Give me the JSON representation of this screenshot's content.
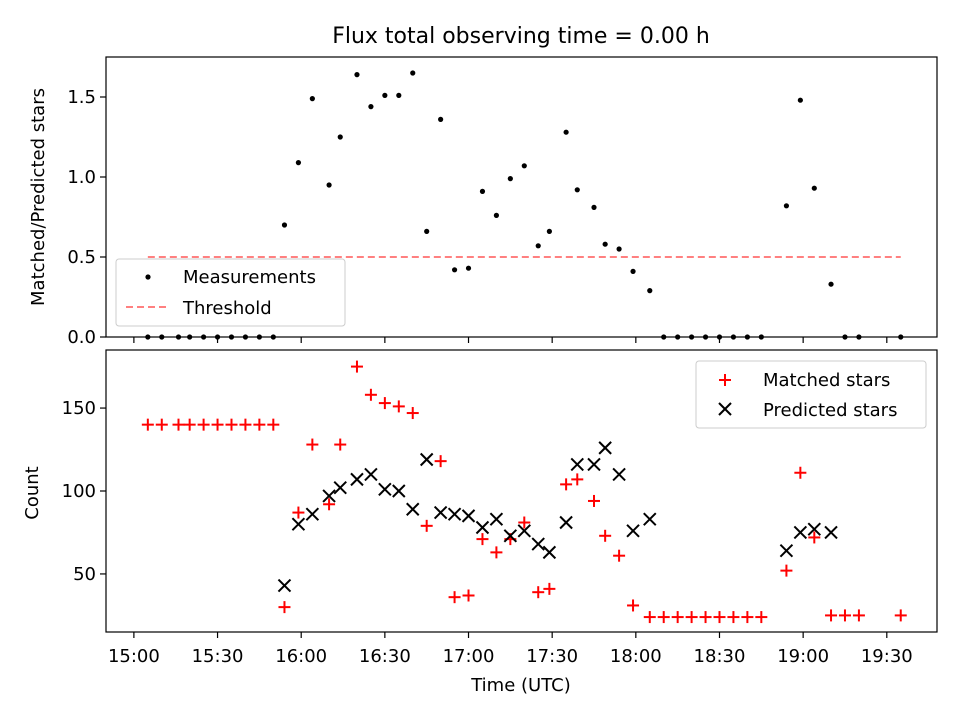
{
  "chart_data": [
    {
      "type": "scatter",
      "title": "Flux total observing time = 0.00 h",
      "xlabel": "",
      "ylabel": "Matched/Predicted stars",
      "ylim": [
        0,
        1.75
      ],
      "yticks": [
        0.0,
        0.5,
        1.0,
        1.5
      ],
      "ytick_labels": [
        "0.0",
        "0.5",
        "1.0",
        "1.5"
      ],
      "legend_position": "lower-left",
      "series": [
        {
          "name": "Measurements",
          "marker": "dot",
          "color": "#000000",
          "points": [
            [
              "15:05",
              0
            ],
            [
              "15:10",
              0
            ],
            [
              "15:16",
              0
            ],
            [
              "15:20",
              0
            ],
            [
              "15:25",
              0
            ],
            [
              "15:30",
              0
            ],
            [
              "15:35",
              0
            ],
            [
              "15:40",
              0
            ],
            [
              "15:45",
              0
            ],
            [
              "15:50",
              0
            ],
            [
              "15:54",
              0.7
            ],
            [
              "15:59",
              1.09
            ],
            [
              "16:04",
              1.49
            ],
            [
              "16:10",
              0.95
            ],
            [
              "16:14",
              1.25
            ],
            [
              "16:20",
              1.64
            ],
            [
              "16:25",
              1.44
            ],
            [
              "16:30",
              1.51
            ],
            [
              "16:35",
              1.51
            ],
            [
              "16:40",
              1.65
            ],
            [
              "16:45",
              0.66
            ],
            [
              "16:50",
              1.36
            ],
            [
              "16:55",
              0.42
            ],
            [
              "17:00",
              0.43
            ],
            [
              "17:05",
              0.91
            ],
            [
              "17:10",
              0.76
            ],
            [
              "17:15",
              0.99
            ],
            [
              "17:20",
              1.07
            ],
            [
              "17:25",
              0.57
            ],
            [
              "17:29",
              0.66
            ],
            [
              "17:35",
              1.28
            ],
            [
              "17:39",
              0.92
            ],
            [
              "17:45",
              0.81
            ],
            [
              "17:49",
              0.58
            ],
            [
              "17:54",
              0.55
            ],
            [
              "17:59",
              0.41
            ],
            [
              "18:05",
              0.29
            ],
            [
              "18:10",
              0
            ],
            [
              "18:15",
              0
            ],
            [
              "18:20",
              0
            ],
            [
              "18:25",
              0
            ],
            [
              "18:30",
              0
            ],
            [
              "18:35",
              0
            ],
            [
              "18:40",
              0
            ],
            [
              "18:45",
              0
            ],
            [
              "18:54",
              0.82
            ],
            [
              "18:59",
              1.48
            ],
            [
              "19:04",
              0.93
            ],
            [
              "19:10",
              0.33
            ],
            [
              "19:15",
              0
            ],
            [
              "19:20",
              0
            ],
            [
              "19:35",
              0
            ]
          ]
        },
        {
          "name": "Threshold",
          "marker": "dashed-line",
          "color": "#ff8080",
          "points": [
            [
              "15:05",
              0.5
            ],
            [
              "19:35",
              0.5
            ]
          ]
        }
      ]
    },
    {
      "type": "scatter",
      "title": "",
      "xlabel": "Time (UTC)",
      "ylabel": "Count",
      "ylim": [
        15,
        185
      ],
      "yticks": [
        50,
        100,
        150
      ],
      "ytick_labels": [
        "50",
        "100",
        "150"
      ],
      "x_tick_labels": [
        "15:00",
        "15:30",
        "16:00",
        "16:30",
        "17:00",
        "17:30",
        "18:00",
        "18:30",
        "19:00",
        "19:30"
      ],
      "legend_position": "top-right",
      "series": [
        {
          "name": "Matched stars",
          "marker": "plus",
          "color": "#ff0000",
          "points": [
            [
              "15:05",
              140
            ],
            [
              "15:10",
              140
            ],
            [
              "15:16",
              140
            ],
            [
              "15:20",
              140
            ],
            [
              "15:25",
              140
            ],
            [
              "15:30",
              140
            ],
            [
              "15:35",
              140
            ],
            [
              "15:40",
              140
            ],
            [
              "15:45",
              140
            ],
            [
              "15:50",
              140
            ],
            [
              "15:54",
              30
            ],
            [
              "15:59",
              87
            ],
            [
              "16:04",
              128
            ],
            [
              "16:10",
              92
            ],
            [
              "16:14",
              128
            ],
            [
              "16:20",
              175
            ],
            [
              "16:25",
              158
            ],
            [
              "16:30",
              153
            ],
            [
              "16:35",
              151
            ],
            [
              "16:40",
              147
            ],
            [
              "16:45",
              79
            ],
            [
              "16:50",
              118
            ],
            [
              "16:55",
              36
            ],
            [
              "17:00",
              37
            ],
            [
              "17:05",
              71
            ],
            [
              "17:10",
              63
            ],
            [
              "17:15",
              71
            ],
            [
              "17:20",
              81
            ],
            [
              "17:25",
              39
            ],
            [
              "17:29",
              41
            ],
            [
              "17:35",
              104
            ],
            [
              "17:39",
              107
            ],
            [
              "17:45",
              94
            ],
            [
              "17:49",
              73
            ],
            [
              "17:54",
              61
            ],
            [
              "17:59",
              31
            ],
            [
              "18:05",
              24
            ],
            [
              "18:10",
              24
            ],
            [
              "18:15",
              24
            ],
            [
              "18:20",
              24
            ],
            [
              "18:25",
              24
            ],
            [
              "18:30",
              24
            ],
            [
              "18:35",
              24
            ],
            [
              "18:40",
              24
            ],
            [
              "18:45",
              24
            ],
            [
              "18:54",
              52
            ],
            [
              "18:59",
              111
            ],
            [
              "19:04",
              72
            ],
            [
              "19:10",
              25
            ],
            [
              "19:15",
              25
            ],
            [
              "19:20",
              25
            ],
            [
              "19:35",
              25
            ]
          ]
        },
        {
          "name": "Predicted stars",
          "marker": "x",
          "color": "#000000",
          "points": [
            [
              "15:54",
              43
            ],
            [
              "15:59",
              80
            ],
            [
              "16:04",
              86
            ],
            [
              "16:10",
              97
            ],
            [
              "16:14",
              102
            ],
            [
              "16:20",
              107
            ],
            [
              "16:25",
              110
            ],
            [
              "16:30",
              101
            ],
            [
              "16:35",
              100
            ],
            [
              "16:40",
              89
            ],
            [
              "16:45",
              119
            ],
            [
              "16:50",
              87
            ],
            [
              "16:55",
              86
            ],
            [
              "17:00",
              85
            ],
            [
              "17:05",
              78
            ],
            [
              "17:10",
              83
            ],
            [
              "17:15",
              73
            ],
            [
              "17:20",
              76
            ],
            [
              "17:25",
              68
            ],
            [
              "17:29",
              63
            ],
            [
              "17:35",
              81
            ],
            [
              "17:39",
              116
            ],
            [
              "17:45",
              116
            ],
            [
              "17:49",
              126
            ],
            [
              "17:54",
              110
            ],
            [
              "17:59",
              76
            ],
            [
              "18:05",
              83
            ],
            [
              "18:54",
              64
            ],
            [
              "18:59",
              75
            ],
            [
              "19:04",
              77
            ],
            [
              "19:10",
              75
            ]
          ]
        }
      ]
    }
  ]
}
